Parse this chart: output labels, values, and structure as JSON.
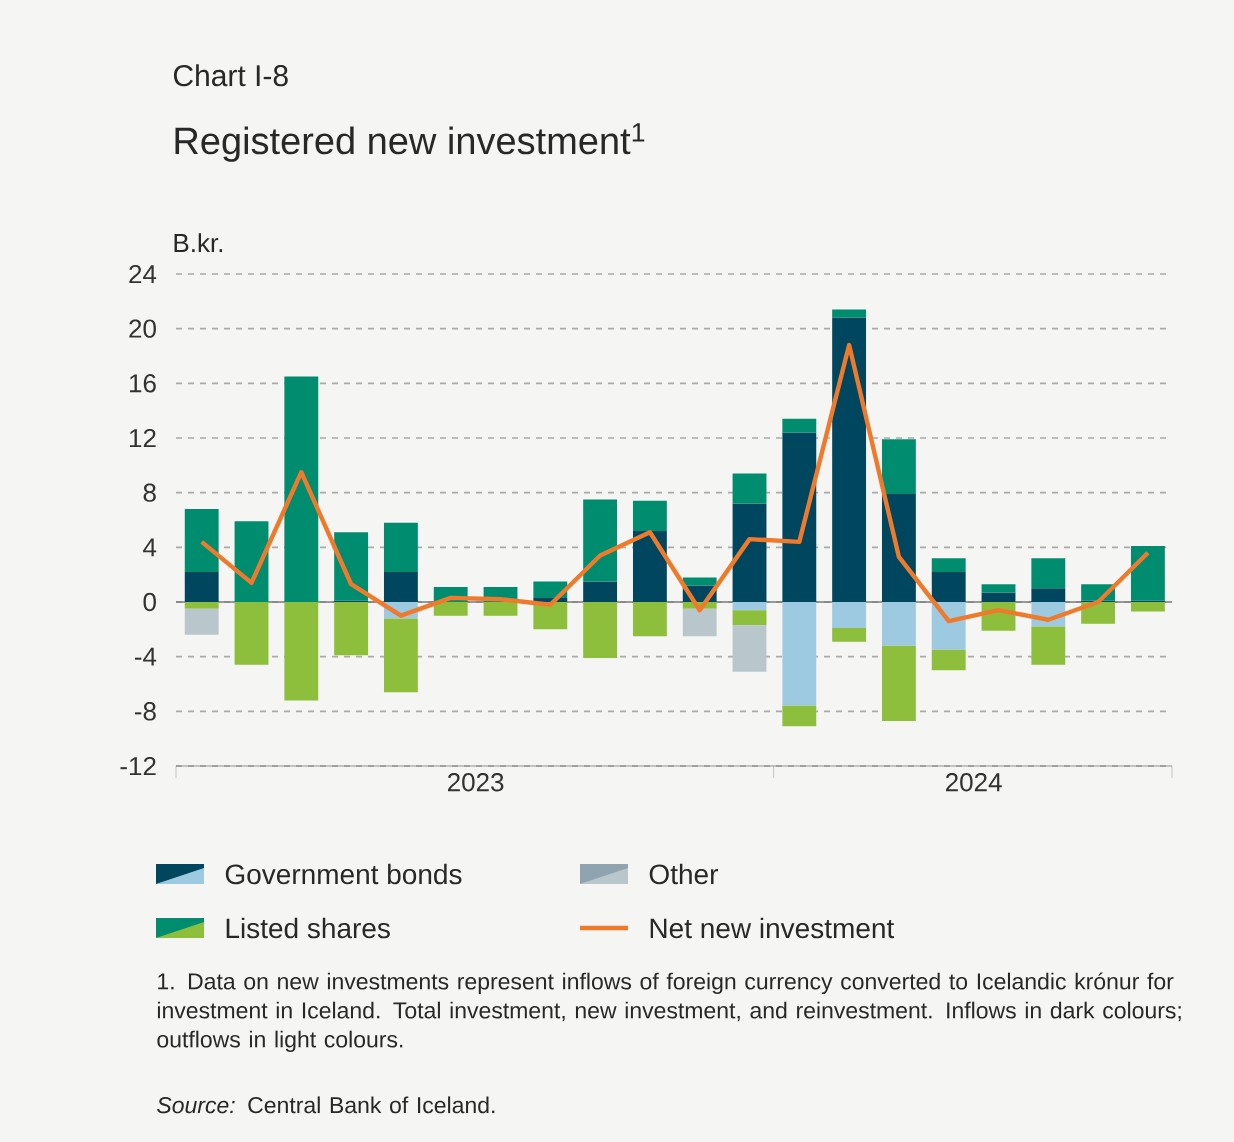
{
  "chart_data": {
    "type": "bar",
    "stacked": true,
    "title": "Registered new investment$^{1}$",
    "subtitle": "Chart I-8",
    "ylabel": "B.kr.",
    "x": [
      "2023-01",
      "2023-02",
      "2023-03",
      "2023-04",
      "2023-05",
      "2023-06",
      "2023-07",
      "2023-08",
      "2023-09",
      "2023-10",
      "2023-11",
      "2023-12",
      "2024-01",
      "2024-02",
      "2024-03",
      "2024-04",
      "2024-05",
      "2024-06",
      "2024-07",
      "2024-08"
    ],
    "xlim": [
      "2022-12-16",
      "2024-08-16"
    ],
    "xticks": [
      {
        "value": "2022-12-16",
        "label": null
      },
      {
        "value": "2023-06-16",
        "label": "2023"
      },
      {
        "value": "2023-12-16",
        "label": null
      },
      {
        "value": "2024-04-16",
        "label": "2024"
      },
      {
        "value": "2024-08-16",
        "label": null
      }
    ],
    "ylim": [
      -12,
      24
    ],
    "yticks": [
      -12,
      -8,
      -4,
      0,
      4,
      8,
      12,
      16,
      20,
      24
    ],
    "grid": "y",
    "legend": "bottom",
    "series": [
      {
        "name": "Government bonds",
        "color": "#00465f",
        "values": [
          2.2,
          0,
          0,
          0.1,
          2.2,
          0,
          0,
          0.3,
          1.5,
          5.2,
          1.2,
          7.2,
          12.4,
          20.8,
          7.9,
          2.2,
          0.7,
          1.0,
          0.1,
          0.1
        ]
      },
      {
        "color": "#9ecae1",
        "values": [
          null,
          null,
          null,
          null,
          -1.2,
          null,
          null,
          null,
          null,
          null,
          null,
          -0.6,
          -7.6,
          -1.9,
          -3.2,
          -3.5,
          null,
          -1.8,
          null,
          null
        ]
      },
      {
        "name": "Listed shares",
        "color": "#008c6e",
        "values": [
          4.6,
          5.9,
          16.5,
          5.0,
          3.6,
          1.1,
          1.1,
          1.2,
          6.0,
          2.2,
          0.6,
          2.2,
          1.0,
          0.6,
          4.0,
          1.0,
          0.6,
          2.2,
          1.2,
          4.0
        ]
      },
      {
        "color": "#8dbe3c",
        "values": [
          -0.5,
          -4.6,
          -7.2,
          -3.9,
          -5.4,
          -1.0,
          -1.0,
          -2.0,
          -4.1,
          -2.5,
          -0.5,
          -1.1,
          -1.5,
          -1.0,
          -5.5,
          -1.5,
          -2.1,
          -2.8,
          -1.6,
          -0.7
        ]
      },
      {
        "name": "Other",
        "color": "#8fa3b0",
        "values": [
          null,
          null,
          null,
          null,
          null,
          null,
          null,
          null,
          null,
          null,
          null,
          null,
          null,
          null,
          null,
          null,
          null,
          null,
          null,
          null
        ]
      },
      {
        "color": "#b9c6cc",
        "values": [
          -1.9,
          null,
          null,
          null,
          null,
          null,
          null,
          null,
          null,
          null,
          -2.0,
          -3.4,
          null,
          null,
          null,
          null,
          null,
          null,
          null,
          null
        ]
      },
      {
        "name": "Net new investment",
        "type": "line",
        "color": "#f07a2b",
        "values": [
          4.4,
          1.4,
          9.5,
          1.3,
          -1.0,
          0.3,
          0.2,
          -0.2,
          3.4,
          5.1,
          -0.6,
          4.6,
          4.4,
          18.8,
          3.3,
          -1.4,
          -0.6,
          -1.3,
          0,
          3.6
        ]
      }
    ],
    "annotations": [
      "1. Data on new investments represent inflows of foreign currency converted to Icelandic krónur for investment in Iceland. Total investment, new investment, and reinvestment. Inflows in dark colours; outflows in light colours.",
      "*Source:* Central Bank of Iceland."
    ]
  }
}
